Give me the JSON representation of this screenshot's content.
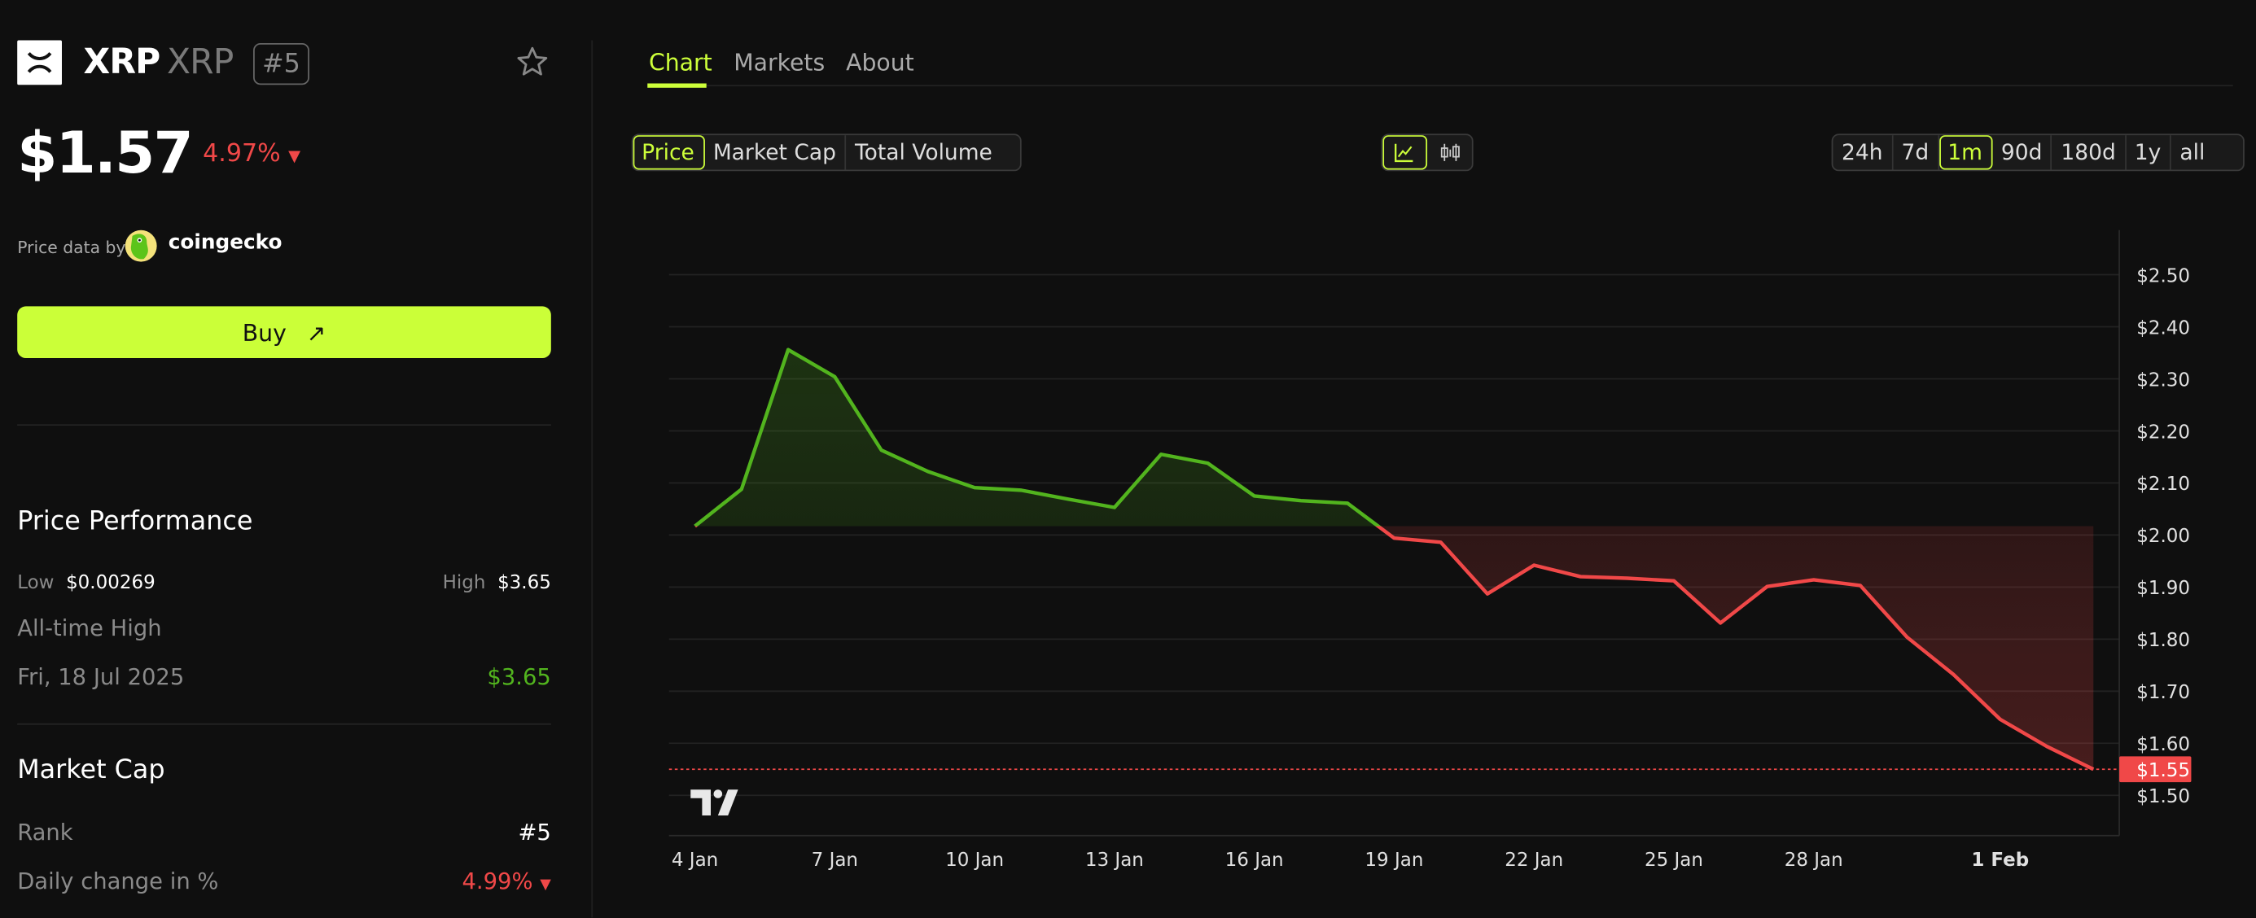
{
  "coin": {
    "name": "XRP",
    "symbol": "XRP",
    "rank_badge": "#5",
    "price": "$1.57",
    "change_24h": "4.97%",
    "change_direction": "down",
    "logo_icon": "xrp-logo"
  },
  "attribution": {
    "label": "Price data by",
    "provider": "coingecko"
  },
  "buy_button": {
    "label": "Buy",
    "icon": "arrow-up-right-icon"
  },
  "price_performance": {
    "title": "Price Performance",
    "low_label": "Low",
    "low_value": "$0.00269",
    "high_label": "High",
    "high_value": "$3.65",
    "ath_label": "All-time High",
    "ath_date": "Fri, 18 Jul 2025",
    "ath_value": "$3.65"
  },
  "market_cap": {
    "title": "Market Cap",
    "rank_label": "Rank",
    "rank_value": "#5",
    "daily_change_label": "Daily change in %",
    "daily_change_value": "4.99%"
  },
  "tabs": [
    {
      "label": "Chart",
      "active": true
    },
    {
      "label": "Markets",
      "active": false
    },
    {
      "label": "About",
      "active": false
    }
  ],
  "metric_buttons": [
    {
      "label": "Price",
      "active": true
    },
    {
      "label": "Market Cap",
      "active": false
    },
    {
      "label": "Total Volume",
      "active": false
    }
  ],
  "chart_type_buttons": [
    {
      "icon": "line-chart-icon",
      "active": true
    },
    {
      "icon": "candlestick-icon",
      "active": false
    }
  ],
  "range_buttons": [
    {
      "label": "24h"
    },
    {
      "label": "7d"
    },
    {
      "label": "1m",
      "active": true
    },
    {
      "label": "90d"
    },
    {
      "label": "180d"
    },
    {
      "label": "1y"
    },
    {
      "label": "all"
    }
  ],
  "colors": {
    "accent": "#cdff3a",
    "up": "#52b41e",
    "down": "#f04848",
    "background": "#0f0f0f"
  },
  "chart_data": {
    "type": "line",
    "x": [
      "4 Jan",
      "5 Jan",
      "6 Jan",
      "7 Jan",
      "8 Jan",
      "9 Jan",
      "10 Jan",
      "11 Jan",
      "12 Jan",
      "13 Jan",
      "14 Jan",
      "15 Jan",
      "16 Jan",
      "17 Jan",
      "18 Jan",
      "19 Jan",
      "20 Jan",
      "21 Jan",
      "22 Jan",
      "23 Jan",
      "24 Jan",
      "25 Jan",
      "26 Jan",
      "27 Jan",
      "28 Jan",
      "29 Jan",
      "30 Jan",
      "31 Jan",
      "1 Feb",
      "2 Feb",
      "3 Feb"
    ],
    "values": [
      2.017,
      2.088,
      2.356,
      2.304,
      2.163,
      2.122,
      2.091,
      2.086,
      2.069,
      2.053,
      2.155,
      2.138,
      2.075,
      2.066,
      2.061,
      1.994,
      1.986,
      1.887,
      1.942,
      1.92,
      1.917,
      1.912,
      1.831,
      1.901,
      1.914,
      1.903,
      1.804,
      1.732,
      1.646,
      1.594,
      1.55
    ],
    "baseline": 2.017,
    "xticks": [
      "4 Jan",
      "7 Jan",
      "10 Jan",
      "13 Jan",
      "16 Jan",
      "19 Jan",
      "22 Jan",
      "25 Jan",
      "28 Jan",
      "1 Feb"
    ],
    "yticks": [
      "$2.50",
      "$2.40",
      "$2.30",
      "$2.20",
      "$2.10",
      "$2.00",
      "$1.90",
      "$1.80",
      "$1.70",
      "$1.60",
      "$1.50"
    ],
    "ytick_values": [
      2.5,
      2.4,
      2.3,
      2.2,
      2.1,
      2.0,
      1.9,
      1.8,
      1.7,
      1.6,
      1.5
    ],
    "ylim": [
      1.42,
      2.59
    ],
    "current_price_label": "$1.55",
    "grid": true,
    "watermark": "TV"
  }
}
